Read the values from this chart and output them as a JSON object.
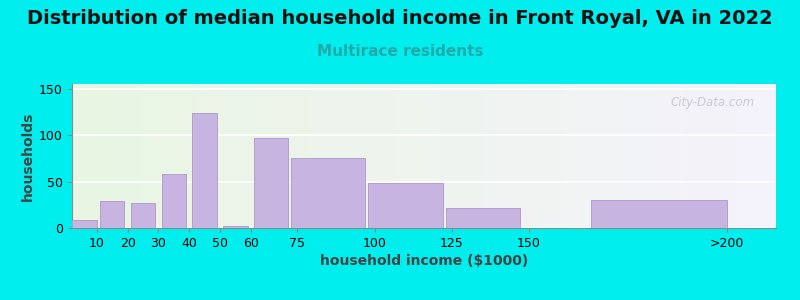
{
  "title": "Distribution of median household income in Front Royal, VA in 2022",
  "subtitle": "Multirace residents",
  "xlabel": "household income ($1000)",
  "ylabel": "households",
  "background_color": "#00EEEE",
  "bar_color": "#c8b4e0",
  "bar_edge_color": "#b0a0cc",
  "watermark": "City-Data.com",
  "categories": [
    "10",
    "20",
    "30",
    "40",
    "50",
    "60",
    "75",
    "100",
    "125",
    "150",
    ">200"
  ],
  "x_numeric": [
    10,
    20,
    30,
    40,
    50,
    60,
    75,
    100,
    125,
    150,
    215
  ],
  "bar_widths": [
    8,
    8,
    8,
    8,
    8,
    8,
    12,
    20,
    20,
    20,
    40
  ],
  "values": [
    9,
    29,
    27,
    58,
    124,
    2,
    97,
    75,
    48,
    22,
    30
  ],
  "ylim": [
    0,
    155
  ],
  "yticks": [
    0,
    50,
    100,
    150
  ],
  "title_fontsize": 14,
  "subtitle_fontsize": 11,
  "subtitle_color": "#22aaaa",
  "axis_label_fontsize": 10,
  "tick_fontsize": 9
}
